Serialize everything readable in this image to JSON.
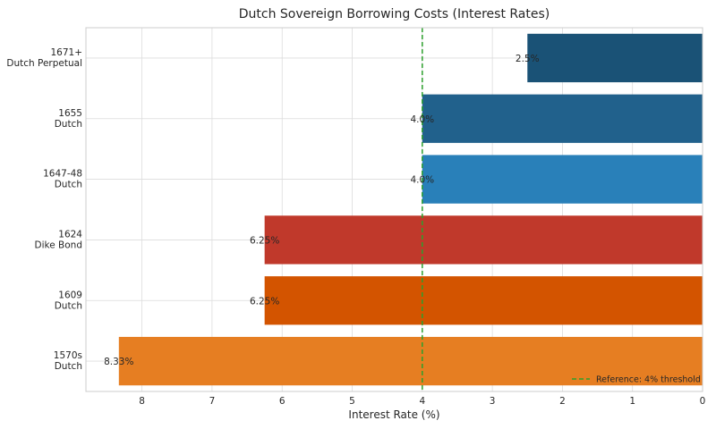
{
  "chart_data": {
    "type": "bar",
    "orientation": "horizontal",
    "title": "Dutch Sovereign Borrowing Costs (Interest Rates)",
    "xlabel": "Interest Rate (%)",
    "ylabel": "",
    "xlim": [
      8.8,
      0
    ],
    "x_inverted": true,
    "xticks": [
      8,
      7,
      6,
      5,
      4,
      3,
      2,
      1,
      0
    ],
    "grid": true,
    "categories": [
      [
        "1570s",
        "Dutch"
      ],
      [
        "1609",
        "Dutch"
      ],
      [
        "1624",
        "Dike Bond"
      ],
      [
        "1647-48",
        "Dutch"
      ],
      [
        "1655",
        "Dutch"
      ],
      [
        "1671+",
        "Dutch Perpetual"
      ]
    ],
    "values": [
      8.33,
      6.25,
      6.25,
      4.0,
      4.0,
      2.5
    ],
    "value_labels": [
      "8.33%",
      "6.25%",
      "6.25%",
      "4.0%",
      "4.0%",
      "2.5%"
    ],
    "colors": [
      "#e67e22",
      "#d35400",
      "#c0392b",
      "#2980b9",
      "#21618c",
      "#1a5276"
    ],
    "reference_line": {
      "value": 4,
      "label": "Reference: 4% threshold",
      "color": "#2ca02c",
      "style": "dashed"
    },
    "legend_placement": "lower-right"
  }
}
